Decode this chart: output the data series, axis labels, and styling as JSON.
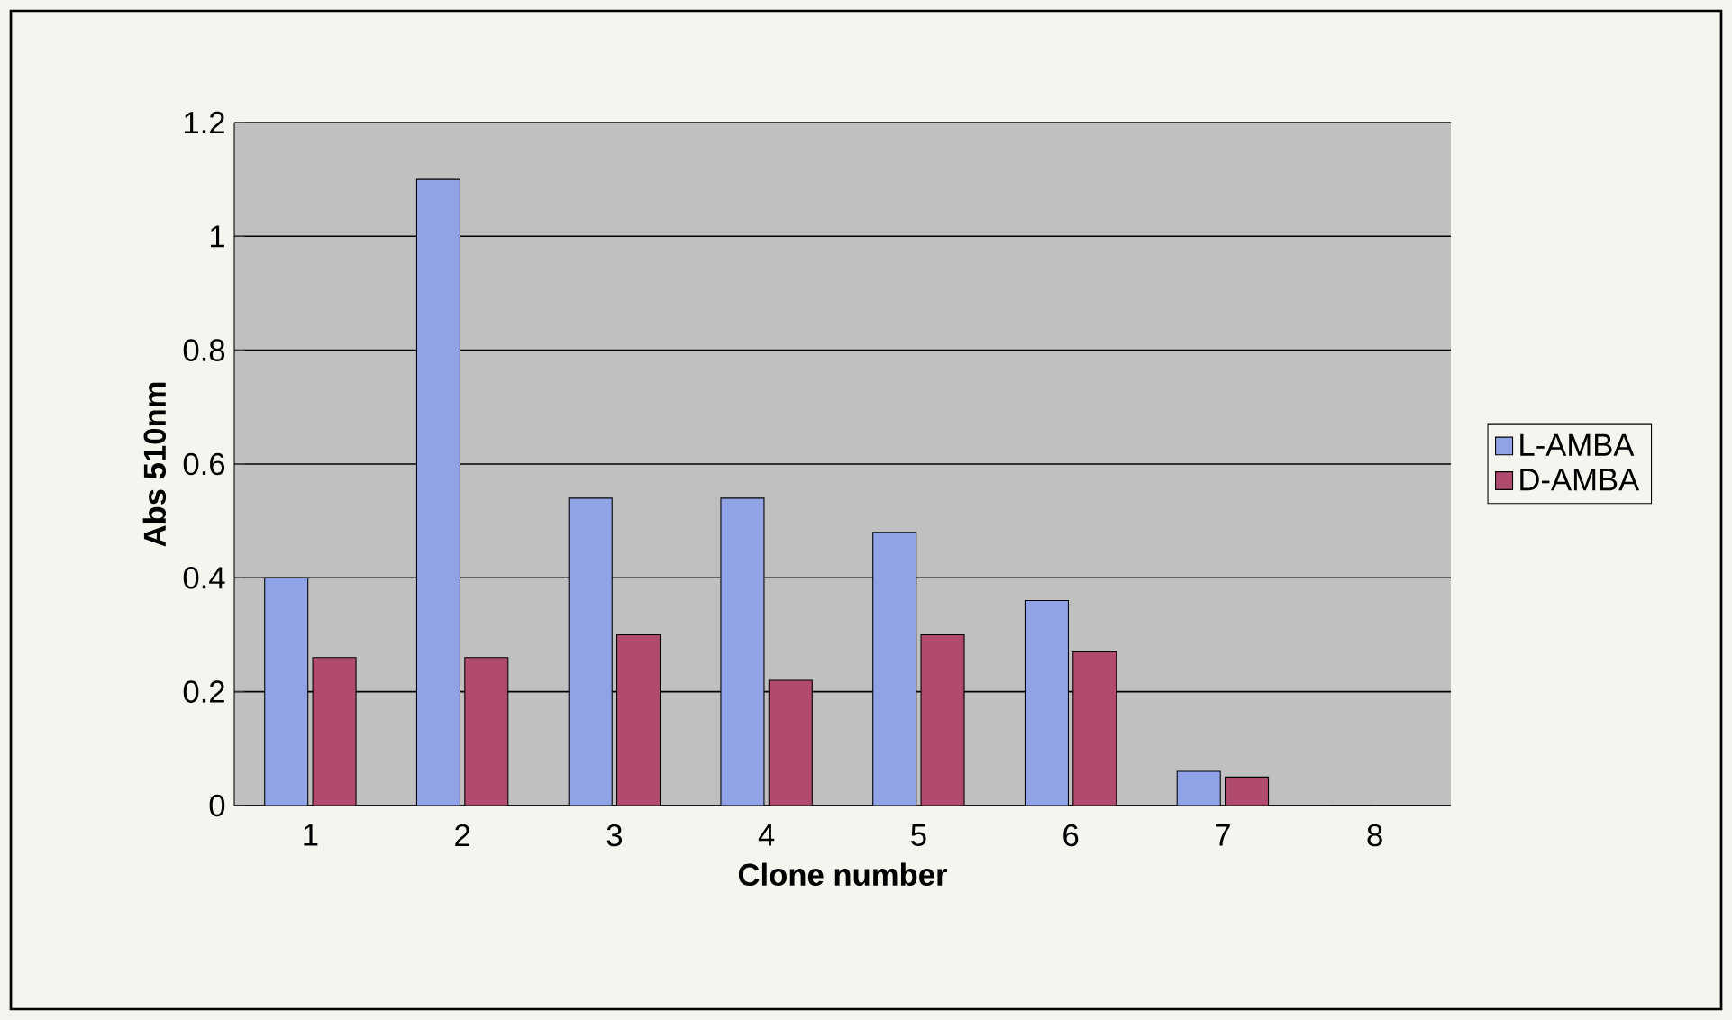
{
  "chart_data": {
    "type": "bar",
    "xlabel": "Clone number",
    "ylabel": "Abs 510nm",
    "categories": [
      "1",
      "2",
      "3",
      "4",
      "5",
      "6",
      "7",
      "8"
    ],
    "series": [
      {
        "name": "L-AMBA",
        "color": "#8fa3e6",
        "values": [
          0.4,
          1.1,
          0.54,
          0.54,
          0.48,
          0.36,
          0.06,
          0
        ]
      },
      {
        "name": "D-AMBA",
        "color": "#b04a6e",
        "values": [
          0.26,
          0.26,
          0.3,
          0.22,
          0.3,
          0.27,
          0.05,
          0
        ]
      }
    ],
    "ylim": [
      0,
      1.2
    ],
    "yticks": [
      0,
      0.2,
      0.4,
      0.6,
      0.8,
      1,
      1.2
    ],
    "grid": "y",
    "legend": "right"
  }
}
